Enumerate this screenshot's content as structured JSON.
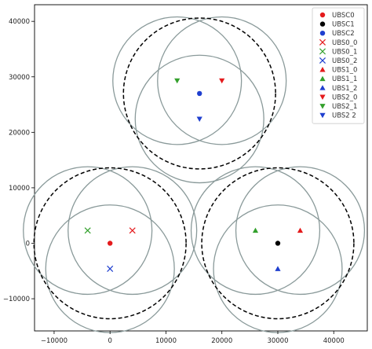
{
  "chart_data": {
    "type": "scatter",
    "xlim": [
      -13500,
      46000
    ],
    "ylim": [
      -15800,
      43000
    ],
    "x_ticks": [
      -10000,
      0,
      10000,
      20000,
      30000,
      40000
    ],
    "y_ticks": [
      -10000,
      0,
      10000,
      20000,
      30000,
      40000
    ],
    "x_tick_labels": [
      "−10000",
      "0",
      "10000",
      "20000",
      "30000",
      "40000"
    ],
    "y_tick_labels": [
      "−10000",
      "0",
      "10000",
      "20000",
      "30000",
      "40000"
    ],
    "grid": false,
    "legend_position": "top-right",
    "series": [
      {
        "name": "UBSC0",
        "marker": "circle",
        "color": "#e41a1c",
        "points": [
          [
            0,
            0
          ]
        ]
      },
      {
        "name": "UBSC1",
        "marker": "circle",
        "color": "#000000",
        "points": [
          [
            30000,
            0
          ]
        ]
      },
      {
        "name": "UBSC2",
        "marker": "circle",
        "color": "#1f3fcf",
        "points": [
          [
            16000,
            27000
          ]
        ]
      },
      {
        "name": "UBS0_0",
        "marker": "x",
        "color": "#e41a1c",
        "points": [
          [
            4000,
            2300
          ]
        ]
      },
      {
        "name": "UBS0_1",
        "marker": "x",
        "color": "#33a02c",
        "points": [
          [
            -4000,
            2300
          ]
        ]
      },
      {
        "name": "UBS0_2",
        "marker": "x",
        "color": "#1f3fcf",
        "points": [
          [
            0,
            -4600
          ]
        ]
      },
      {
        "name": "UBS1_0",
        "marker": "triangle-up",
        "color": "#e41a1c",
        "points": [
          [
            34000,
            2300
          ]
        ]
      },
      {
        "name": "UBS1_1",
        "marker": "triangle-up",
        "color": "#33a02c",
        "points": [
          [
            26000,
            2300
          ]
        ]
      },
      {
        "name": "UBS1_2",
        "marker": "triangle-up",
        "color": "#1f3fcf",
        "points": [
          [
            30000,
            -4600
          ]
        ]
      },
      {
        "name": "UBS2_0",
        "marker": "triangle-down",
        "color": "#e41a1c",
        "points": [
          [
            20000,
            29300
          ]
        ]
      },
      {
        "name": "UBS2_1",
        "marker": "triangle-down",
        "color": "#33a02c",
        "points": [
          [
            12000,
            29300
          ]
        ]
      },
      {
        "name": "UBS2 2",
        "marker": "triangle-down",
        "color": "#1f3fcf",
        "points": [
          [
            16000,
            22400
          ]
        ]
      }
    ],
    "coverage_circles": {
      "color": "#8a9a9a",
      "radius": 11500,
      "centers": [
        [
          4000,
          2300
        ],
        [
          -4000,
          2300
        ],
        [
          0,
          -4600
        ],
        [
          34000,
          2300
        ],
        [
          26000,
          2300
        ],
        [
          30000,
          -4600
        ],
        [
          20000,
          29300
        ],
        [
          12000,
          29300
        ],
        [
          16000,
          22400
        ]
      ]
    },
    "cluster_boundaries": {
      "color": "#000000",
      "style": "dashed",
      "radius": 13600,
      "centers": [
        [
          0,
          0
        ],
        [
          30000,
          0
        ],
        [
          16000,
          27000
        ]
      ]
    }
  }
}
